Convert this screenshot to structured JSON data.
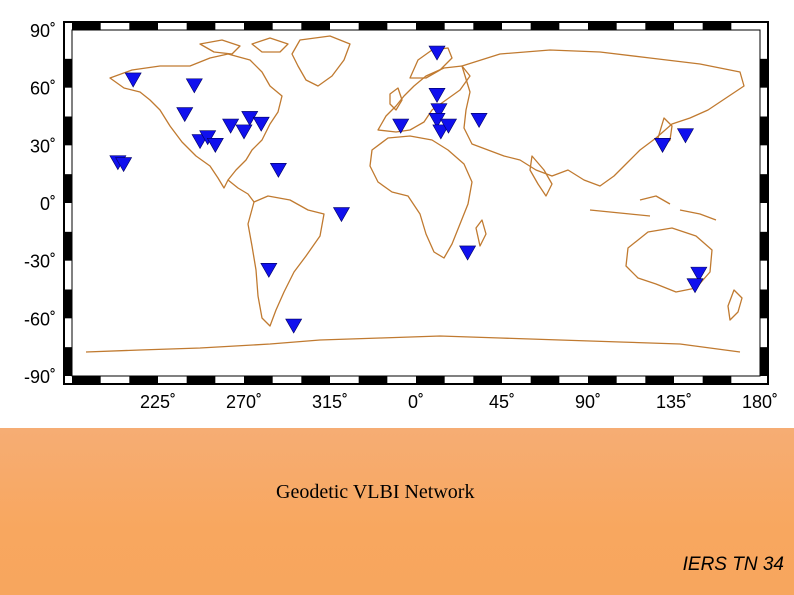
{
  "map": {
    "lat_labels": [
      "90˚",
      "60˚",
      "30˚",
      "0˚",
      "-30˚",
      "-60˚",
      "-90˚"
    ],
    "lat_values": [
      90,
      60,
      30,
      0,
      -30,
      -60,
      -90
    ],
    "lon_labels": [
      "225˚",
      "270˚",
      "315˚",
      "0˚",
      "45˚",
      "90˚",
      "135˚",
      "180˚"
    ],
    "lon_values": [
      225,
      270,
      315,
      360,
      405,
      450,
      495,
      540
    ],
    "lon_range": [
      180,
      540
    ],
    "lat_range": [
      -90,
      90
    ],
    "marker_color": "#1010ee",
    "coastline_color": "#c07a30",
    "stations": [
      {
        "lon": 204,
        "lat": 21
      },
      {
        "lon": 207,
        "lat": 20
      },
      {
        "lon": 212,
        "lat": 64
      },
      {
        "lon": 239,
        "lat": 46
      },
      {
        "lon": 244,
        "lat": 61
      },
      {
        "lon": 247,
        "lat": 32
      },
      {
        "lon": 251,
        "lat": 34
      },
      {
        "lon": 255,
        "lat": 30
      },
      {
        "lon": 263,
        "lat": 40
      },
      {
        "lon": 270,
        "lat": 37
      },
      {
        "lon": 273,
        "lat": 44
      },
      {
        "lon": 279,
        "lat": 41
      },
      {
        "lon": 288,
        "lat": 17
      },
      {
        "lon": 283,
        "lat": -35
      },
      {
        "lon": 296,
        "lat": -64
      },
      {
        "lon": 321,
        "lat": -6
      },
      {
        "lon": 352,
        "lat": 40
      },
      {
        "lon": 371,
        "lat": 78
      },
      {
        "lon": 371,
        "lat": 56
      },
      {
        "lon": 372,
        "lat": 48
      },
      {
        "lon": 371,
        "lat": 43
      },
      {
        "lon": 373,
        "lat": 37
      },
      {
        "lon": 377,
        "lat": 40
      },
      {
        "lon": 393,
        "lat": 43
      },
      {
        "lon": 387,
        "lat": -26
      },
      {
        "lon": 489,
        "lat": 30
      },
      {
        "lon": 501,
        "lat": 35
      },
      {
        "lon": 508,
        "lat": -37
      },
      {
        "lon": 506,
        "lat": -43
      }
    ]
  },
  "caption": "Geodetic VLBI Network",
  "report_id": "IERS TN 34"
}
